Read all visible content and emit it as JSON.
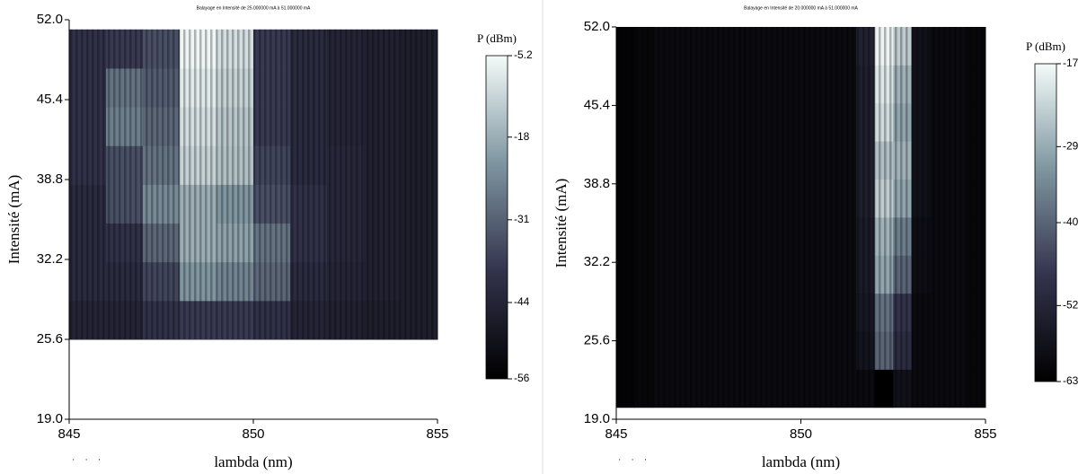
{
  "chart_data": [
    {
      "type": "heatmap",
      "title": "Balayage en Intensité de 25.000000 mA à 51.000000 mA",
      "xlabel": "lambda (nm)",
      "ylabel": "Intensité (mA)",
      "xlim": [
        845,
        855
      ],
      "ylim": [
        19,
        52
      ],
      "xticks": [
        845,
        850,
        855
      ],
      "yticks": [
        {
          "value": 52,
          "label": "52.0"
        },
        45.4,
        38.8,
        32.2,
        25.6,
        {
          "value": 19,
          "label": "19.0"
        }
      ],
      "x": [
        845.5,
        846.5,
        847.5,
        848.5,
        849.5,
        850.5,
        851.5,
        852.5,
        853.5,
        854.5
      ],
      "y": [
        27.2,
        30.4,
        33.6,
        36.8,
        40,
        43.2,
        46.4,
        49.6
      ],
      "z": [
        [
          -44,
          -44,
          -40,
          -38,
          -38,
          -40,
          -44,
          -45,
          -46,
          -46
        ],
        [
          -42,
          -42,
          -36,
          -22,
          -25,
          -30,
          -42,
          -44,
          -45,
          -46
        ],
        [
          -42,
          -40,
          -30,
          -18,
          -20,
          -28,
          -40,
          -43,
          -45,
          -46
        ],
        [
          -42,
          -34,
          -24,
          -18,
          -22,
          -34,
          -40,
          -43,
          -45,
          -46
        ],
        [
          -40,
          -34,
          -28,
          -12,
          -15,
          -36,
          -42,
          -43,
          -45,
          -46
        ],
        [
          -40,
          -26,
          -30,
          -10,
          -14,
          -38,
          -42,
          -44,
          -45,
          -46
        ],
        [
          -40,
          -28,
          -32,
          -8,
          -12,
          -38,
          -42,
          -44,
          -45,
          -46
        ],
        [
          -40,
          -38,
          -34,
          -6,
          -10,
          -38,
          -42,
          -44,
          -45,
          -46
        ]
      ],
      "colormap": [
        "#000000",
        "#33334d",
        "#7e95a0",
        "#f4fbf9"
      ],
      "colorbar": {
        "label": "P (dBm)",
        "lim": [
          -56,
          -5.2
        ],
        "ticks": [
          -5.2,
          -18,
          -31,
          -44,
          -56
        ]
      }
    },
    {
      "type": "heatmap",
      "title": "Balayage en Intensité de 20.000000 mA à 51.000000 mA",
      "xlabel": "lambda (nm)",
      "ylabel": "Intensité (mA)",
      "xlim": [
        845,
        855
      ],
      "ylim": [
        19,
        52
      ],
      "xticks": [
        845,
        850,
        855
      ],
      "yticks": [
        {
          "value": 52,
          "label": "52.0"
        },
        45.4,
        38.8,
        32.2,
        25.6,
        {
          "value": 19,
          "label": "19.0"
        }
      ],
      "x": [
        845.25,
        845.75,
        846.25,
        846.75,
        847.25,
        847.75,
        848.25,
        848.75,
        849.25,
        849.75,
        850.25,
        850.75,
        851.25,
        851.75,
        852.25,
        852.75,
        853.25,
        853.75,
        854.25,
        854.75
      ],
      "y": [
        21.6,
        24.8,
        28,
        31.2,
        34.4,
        37.6,
        40.8,
        44,
        47.2,
        50.4
      ],
      "z": [
        [
          -62,
          -61,
          -60,
          -60,
          -60,
          -60,
          -60,
          -60,
          -60,
          -60,
          -60,
          -60,
          -60,
          -60,
          -63,
          -58,
          -60,
          -60,
          -60,
          -61
        ],
        [
          -62,
          -61,
          -60,
          -60,
          -60,
          -60,
          -60,
          -60,
          -60,
          -60,
          -60,
          -60,
          -60,
          -57,
          -40,
          -50,
          -60,
          -60,
          -60,
          -61
        ],
        [
          -62,
          -61,
          -60,
          -60,
          -60,
          -60,
          -60,
          -60,
          -60,
          -60,
          -60,
          -60,
          -60,
          -56,
          -38,
          -48,
          -60,
          -60,
          -60,
          -61
        ],
        [
          -62,
          -61,
          -60,
          -60,
          -60,
          -60,
          -60,
          -60,
          -60,
          -60,
          -60,
          -60,
          -60,
          -55,
          -30,
          -40,
          -59,
          -60,
          -60,
          -61
        ],
        [
          -62,
          -61,
          -60,
          -60,
          -60,
          -60,
          -60,
          -60,
          -60,
          -60,
          -60,
          -60,
          -60,
          -55,
          -28,
          -36,
          -59,
          -60,
          -60,
          -61
        ],
        [
          -62,
          -61,
          -60,
          -60,
          -60,
          -60,
          -60,
          -60,
          -60,
          -60,
          -60,
          -60,
          -60,
          -54,
          -24,
          -30,
          -58,
          -60,
          -60,
          -61
        ],
        [
          -62,
          -61,
          -60,
          -60,
          -60,
          -60,
          -60,
          -60,
          -60,
          -60,
          -60,
          -60,
          -60,
          -54,
          -26,
          -28,
          -58,
          -60,
          -60,
          -61
        ],
        [
          -62,
          -61,
          -60,
          -60,
          -60,
          -60,
          -60,
          -60,
          -60,
          -60,
          -60,
          -60,
          -60,
          -54,
          -22,
          -30,
          -58,
          -60,
          -60,
          -61
        ],
        [
          -62,
          -61,
          -60,
          -60,
          -60,
          -60,
          -60,
          -60,
          -60,
          -60,
          -60,
          -60,
          -60,
          -54,
          -20,
          -28,
          -58,
          -60,
          -60,
          -61
        ],
        [
          -62,
          -61,
          -60,
          -60,
          -60,
          -60,
          -60,
          -60,
          -60,
          -60,
          -60,
          -60,
          -60,
          -53,
          -18,
          -24,
          -58,
          -60,
          -60,
          -61
        ]
      ],
      "colormap": [
        "#000000",
        "#33334d",
        "#7e95a0",
        "#f4fbf9"
      ],
      "colorbar": {
        "label": "P (dBm)",
        "lim": [
          -63,
          -17
        ],
        "ticks": [
          -17,
          -29,
          -40,
          -52,
          -63
        ]
      }
    }
  ]
}
